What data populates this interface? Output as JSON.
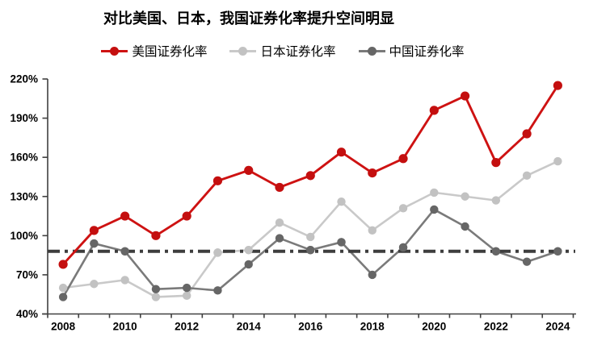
{
  "title": "对比美国、日本，我国证券化率提升空间明显",
  "legend": [
    {
      "label": "美国证券化率",
      "line_color": "#ce1212",
      "dot_color": "#c40f0f"
    },
    {
      "label": "日本证券化率",
      "line_color": "#c9c9c9",
      "dot_color": "#c2c2c2"
    },
    {
      "label": "中国证券化率",
      "line_color": "#7a7a7a",
      "dot_color": "#666666"
    }
  ],
  "chart_data": {
    "type": "line",
    "x": [
      2008,
      2009,
      2010,
      2011,
      2012,
      2013,
      2014,
      2015,
      2016,
      2017,
      2018,
      2019,
      2020,
      2021,
      2022,
      2023,
      2024
    ],
    "x_label_years": [
      2008,
      2010,
      2012,
      2014,
      2016,
      2018,
      2020,
      2022,
      2024
    ],
    "series": [
      {
        "name": "美国证券化率",
        "line_color": "#ce1212",
        "dot_color": "#c40f0f",
        "line_width": 2.9,
        "dot_r": 5.6,
        "values": [
          78,
          104,
          115,
          100,
          115,
          142,
          150,
          137,
          146,
          164,
          148,
          159,
          196,
          207,
          156,
          178,
          215
        ]
      },
      {
        "name": "日本证券化率",
        "line_color": "#c9c9c9",
        "dot_color": "#c2c2c2",
        "line_width": 2.6,
        "dot_r": 5.2,
        "values": [
          60,
          63,
          66,
          53,
          54,
          87,
          89,
          110,
          99,
          126,
          104,
          121,
          133,
          130,
          127,
          146,
          157
        ]
      },
      {
        "name": "中国证券化率",
        "line_color": "#7a7a7a",
        "dot_color": "#666666",
        "line_width": 2.6,
        "dot_r": 5.2,
        "values": [
          53,
          94,
          88,
          59,
          60,
          58,
          78,
          98,
          89,
          95,
          70,
          91,
          120,
          107,
          88,
          80,
          88
        ]
      }
    ],
    "reference_line": {
      "value": 88,
      "style": "dash-dot",
      "color": "#3d3d3d",
      "width": 4
    },
    "ylim": [
      40,
      220
    ],
    "yticks": [
      40,
      70,
      100,
      130,
      160,
      190,
      220
    ],
    "ytick_labels": [
      "40%",
      "70%",
      "100%",
      "130%",
      "160%",
      "190%",
      "220%"
    ],
    "grid": false,
    "legend_position": "top",
    "axis_color": "#404040",
    "tick_label_color": "#000000"
  }
}
